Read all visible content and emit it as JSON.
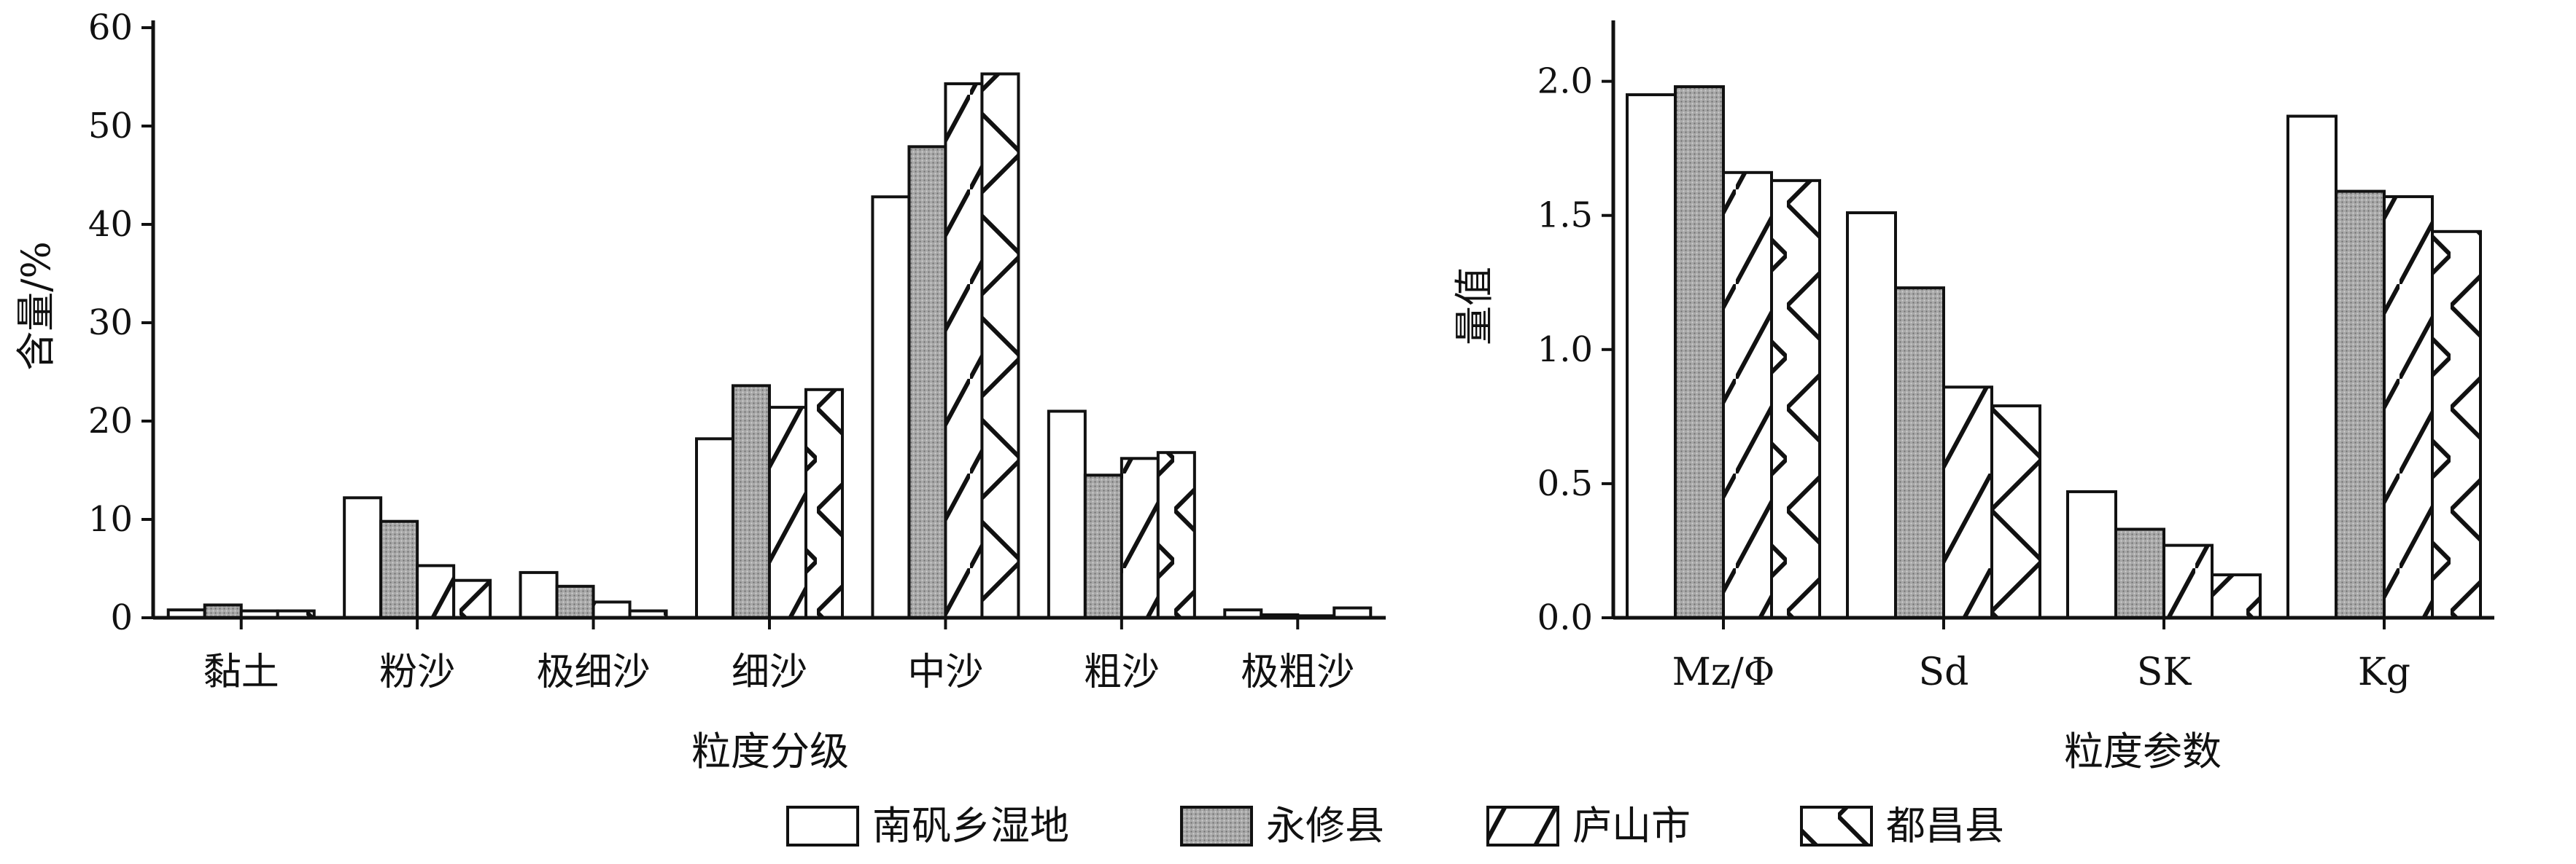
{
  "chart_data": [
    {
      "type": "bar",
      "ylabel": "含量/%",
      "xlabel": "粒度分级",
      "ylim": [
        0,
        60
      ],
      "yticks": [
        0,
        10,
        20,
        30,
        40,
        50,
        60
      ],
      "grid": false,
      "categories": [
        "黏土",
        "粉沙",
        "极细沙",
        "细沙",
        "中沙",
        "粗沙",
        "极粗沙"
      ],
      "series": [
        {
          "name": "南矾乡湿地",
          "values": [
            0.8,
            12.2,
            4.6,
            18.2,
            42.8,
            21.0,
            0.8
          ]
        },
        {
          "name": "永修县",
          "values": [
            1.3,
            9.8,
            3.2,
            23.6,
            47.9,
            14.5,
            0.3
          ]
        },
        {
          "name": "庐山市",
          "values": [
            0.7,
            5.3,
            1.6,
            21.4,
            54.3,
            16.2,
            0.2
          ]
        },
        {
          "name": "都昌县",
          "values": [
            0.7,
            3.8,
            0.7,
            23.2,
            55.3,
            16.8,
            1.0
          ]
        }
      ]
    },
    {
      "type": "bar",
      "ylabel": "量值",
      "xlabel": "粒度参数",
      "ylim": [
        0,
        2.2
      ],
      "yticks": [
        "0.0",
        "0.5",
        "1.0",
        "1.5",
        "2.0"
      ],
      "grid": false,
      "categories": [
        "Mz/Φ",
        "Sd",
        "SK",
        "Kg"
      ],
      "series": [
        {
          "name": "南矾乡湿地",
          "values": [
            1.95,
            1.51,
            0.47,
            1.87
          ]
        },
        {
          "name": "永修县",
          "values": [
            1.98,
            1.23,
            0.33,
            1.59
          ]
        },
        {
          "name": "庐山市",
          "values": [
            1.66,
            0.86,
            0.27,
            1.57
          ]
        },
        {
          "name": "都昌县",
          "values": [
            1.63,
            0.79,
            0.16,
            1.44
          ]
        }
      ]
    }
  ],
  "legend": {
    "placement": "bottom-center",
    "items": [
      {
        "label": "南矾乡湿地",
        "fill": "white"
      },
      {
        "label": "永修县",
        "fill": "gray-dotted"
      },
      {
        "label": "庐山市",
        "fill": "forward-hatch"
      },
      {
        "label": "都昌县",
        "fill": "zigzag-hatch"
      }
    ]
  },
  "colors": {
    "outline": "#111111",
    "gray_fill": "#9e9e9e",
    "background": "#ffffff"
  }
}
